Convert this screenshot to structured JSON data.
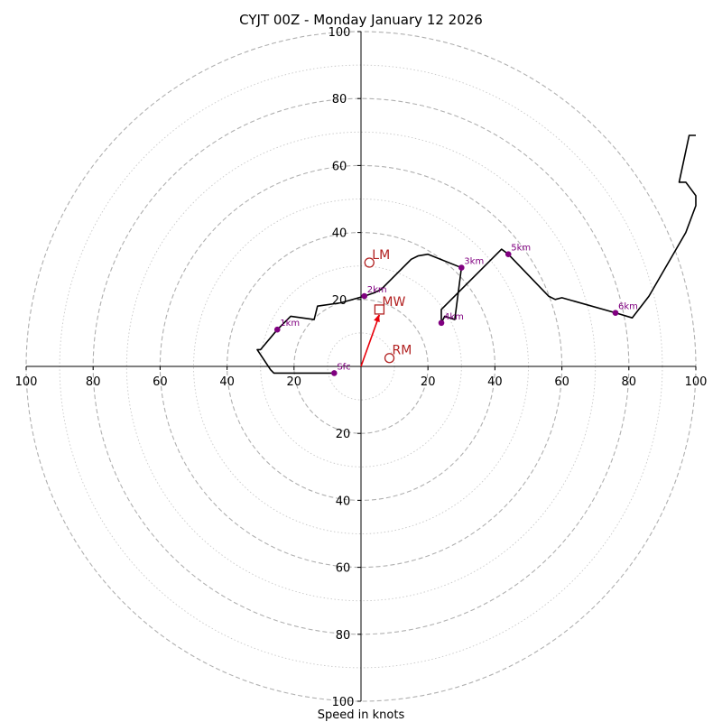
{
  "chart_data": {
    "type": "hodograph",
    "title": "CYJT 00Z - Monday January 12 2026",
    "xlabel": "Speed in knots",
    "max_speed": 100,
    "ring_major_step": 20,
    "ring_minor_offset": 10,
    "ticks": {
      "x_left": [
        "100",
        "80",
        "60",
        "40",
        "20"
      ],
      "x_right": [
        "20",
        "40",
        "60",
        "80",
        "100"
      ],
      "y_up": [
        "20",
        "40",
        "60",
        "80",
        "100"
      ],
      "y_down": [
        "20",
        "40",
        "60",
        "80",
        "100"
      ]
    },
    "tick_values": [
      20,
      40,
      60,
      80,
      100
    ],
    "profile": [
      [
        -8,
        -2
      ],
      [
        -10,
        -2
      ],
      [
        -26,
        -2
      ],
      [
        -27,
        -1
      ],
      [
        -31,
        5
      ],
      [
        -30,
        5
      ],
      [
        -25,
        11
      ],
      [
        -21,
        15
      ],
      [
        -14,
        14
      ],
      [
        -13,
        18
      ],
      [
        -6,
        19
      ],
      [
        1,
        21
      ],
      [
        4,
        22
      ],
      [
        6,
        23
      ],
      [
        15,
        32
      ],
      [
        17,
        33
      ],
      [
        20,
        33.5
      ],
      [
        30,
        29.5
      ],
      [
        28,
        14
      ],
      [
        25,
        15
      ],
      [
        24,
        13
      ],
      [
        24,
        17
      ],
      [
        42,
        35
      ],
      [
        44,
        33.5
      ],
      [
        56,
        21
      ],
      [
        58,
        20
      ],
      [
        60,
        20.5
      ],
      [
        76,
        16
      ],
      [
        81,
        14.5
      ],
      [
        86,
        21
      ],
      [
        97,
        40
      ],
      [
        100,
        48
      ],
      [
        100,
        51
      ],
      [
        97,
        55
      ],
      [
        95,
        55
      ],
      [
        98,
        69
      ],
      [
        100,
        69
      ]
    ],
    "height_markers": [
      {
        "label": "Sfc",
        "u": -8,
        "v": -2
      },
      {
        "label": "1km",
        "u": -25,
        "v": 11
      },
      {
        "label": "2km",
        "u": 1,
        "v": 21
      },
      {
        "label": "3km",
        "u": 30,
        "v": 29.5
      },
      {
        "label": "4km",
        "u": 24,
        "v": 13
      },
      {
        "label": "5km",
        "u": 44,
        "v": 33.5
      },
      {
        "label": "6km",
        "u": 76,
        "v": 16
      }
    ],
    "storm_motion": {
      "LM": {
        "label": "LM",
        "u": 2.5,
        "v": 31
      },
      "RM": {
        "label": "RM",
        "u": 8.5,
        "v": 2.5
      },
      "MW": {
        "label": "MW",
        "u": 5.5,
        "v": 17
      }
    },
    "colors": {
      "profile": "#000000",
      "marker": "#800080",
      "storm": "#b22222",
      "arrow": "#e8000b",
      "ring": "#b0b0b0"
    }
  }
}
